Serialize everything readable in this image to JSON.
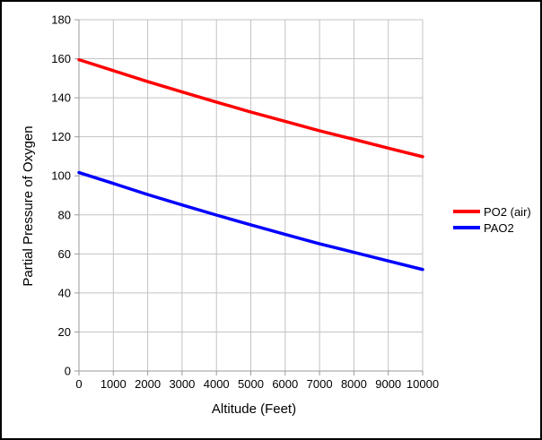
{
  "chart_data": {
    "type": "line",
    "title": "",
    "xlabel": "Altitude (Feet)",
    "ylabel": "Partial Pressure of Oxygen",
    "x": [
      0,
      1000,
      2000,
      3000,
      4000,
      5000,
      6000,
      7000,
      8000,
      9000,
      10000
    ],
    "x_tick_labels": [
      "0",
      "1000",
      "2000",
      "3000",
      "4000",
      "5000",
      "6000",
      "7000",
      "8000",
      "9000",
      "10000"
    ],
    "y_ticks": [
      0,
      20,
      40,
      60,
      80,
      100,
      120,
      140,
      160,
      180
    ],
    "xlim": [
      0,
      10000
    ],
    "ylim": [
      0,
      180
    ],
    "grid": true,
    "legend_position": "right-middle",
    "grid_color": "#c3c3c3",
    "axis_color": "#9a9a9a",
    "series": [
      {
        "name": "PO2 (air)",
        "color": "#ff0000",
        "values": [
          159.5,
          153.9,
          148.3,
          143.0,
          137.8,
          132.7,
          127.9,
          123.1,
          118.7,
          114.2,
          109.8
        ]
      },
      {
        "name": "PAO2",
        "color": "#0000ff",
        "values": [
          101.7,
          96.1,
          90.4,
          85.1,
          79.9,
          74.9,
          70.0,
          65.2,
          60.8,
          56.4,
          52.0
        ]
      }
    ]
  }
}
